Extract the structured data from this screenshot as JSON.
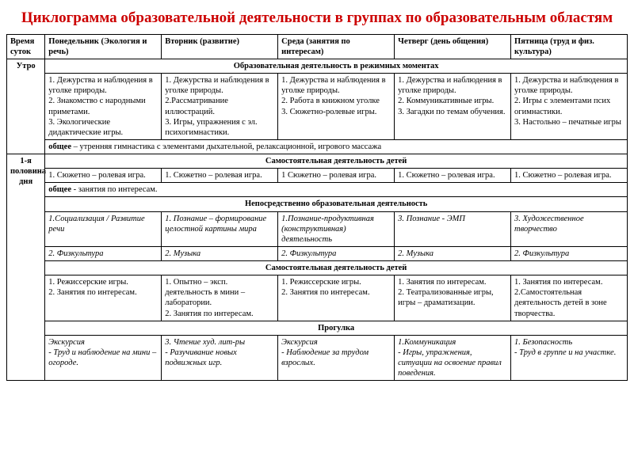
{
  "title": "Циклограмма образовательной деятельности в группах по образовательным областям",
  "headers": {
    "time": "Время суток",
    "mon": "Понедельник (Экология и речь)",
    "tue": "Вторник (развитие)",
    "wed": "Среда (занятия по интересам)",
    "thu": "Четверг (день общения)",
    "fri": "Пятница (труд и физ. культура)"
  },
  "time_labels": {
    "morning": "Утро",
    "first_half": "1-я половина дня"
  },
  "sections": {
    "s1": "Образовательная деятельность в режимных моментах",
    "s2": "Самостоятельная деятельность детей",
    "s3": "Непосредственно образовательная деятельность",
    "s4": "Самостоятельная деятельность детей",
    "s5": "Прогулка"
  },
  "row1": {
    "mon": "1. Дежурства и наблюдения в уголке природы.\n2. Знакомство с народными приметами.\n3. Экологические дидактические игры.",
    "tue": "1. Дежурства и наблюдения в уголке природы.\n2.Рассматривание иллюстраций.\n3. Игры, упражнения с эл. психогимнастики.",
    "wed": "1. Дежурства и наблюдения в уголке природы.\n2. Работа в книжном уголке\n3. Сюжетно-ролевые игры.",
    "thu": "1. Дежурства и наблюдения в уголке природы.\n2. Коммуникативные игры.\n3. Загадки по темам обучения.",
    "fri": "1. Дежурства и наблюдения в уголке природы.\n2. Игры с элементами псих огимнастики.\n3. Настольно – печатные игры"
  },
  "common1_label": "общее",
  "common1_text": " – утренняя гимнастика с элементами дыхательной, релаксационной, игрового массажа",
  "row2": {
    "mon": "1. Сюжетно – ролевая игра.",
    "tue": "1. Сюжетно – ролевая игра.",
    "wed": "1 Сюжетно – ролевая игра.",
    "thu": "1. Сюжетно – ролевая игра.",
    "fri": "1. Сюжетно – ролевая игра."
  },
  "common2_label": "общее",
  "common2_text": " - занятия по интересам.",
  "row3": {
    "mon": "1.Социализация / Развитие речи",
    "tue": "1. Познание – формирование целостной картины мира",
    "wed": "1.Познание-продуктивная (конструктивная) деятельность",
    "thu": "3. Познание - ЭМП",
    "fri": "3. Художественное творчество"
  },
  "row4": {
    "mon": "2. Физкультура",
    "tue": "2. Музыка",
    "wed": "2. Физкультура",
    "thu": "2. Музыка",
    "fri": "2. Физкультура"
  },
  "row5": {
    "mon": "1. Режиссерские игры.\n2. Занятия по интересам.",
    "tue": "1. Опытно – эксп. деятельность в мини – лаборатории.\n2. Занятия по интересам.",
    "wed": "1. Режиссерские игры.\n2. Занятия по интересам.",
    "thu": "1. Занятия по интересам.\n2. Театрализованные игры, игры – драматизации.",
    "fri": "1. Занятия по интересам.\n2.Самостоятельная деятельность детей в зоне творчества."
  },
  "row6": {
    "mon": "Экскурсия\n- Труд и наблюдение на мини – огороде.",
    "tue": "3. Чтение худ. лит-ры\n- Разучивание новых подвижных игр.",
    "wed": "Экскурсия\n- Наблюдение за трудом взрослых.",
    "thu": "1.Коммуникация\n- Игры, упражнения, ситуации на освоение правил поведения.",
    "fri": "1. Безопасность\n- Труд в группе и на участке."
  },
  "styling": {
    "title_color": "#cc0000",
    "border_color": "#000000",
    "background": "#ffffff",
    "font_family": "Times New Roman",
    "base_fontsize": 10.5,
    "title_fontsize": 19
  }
}
